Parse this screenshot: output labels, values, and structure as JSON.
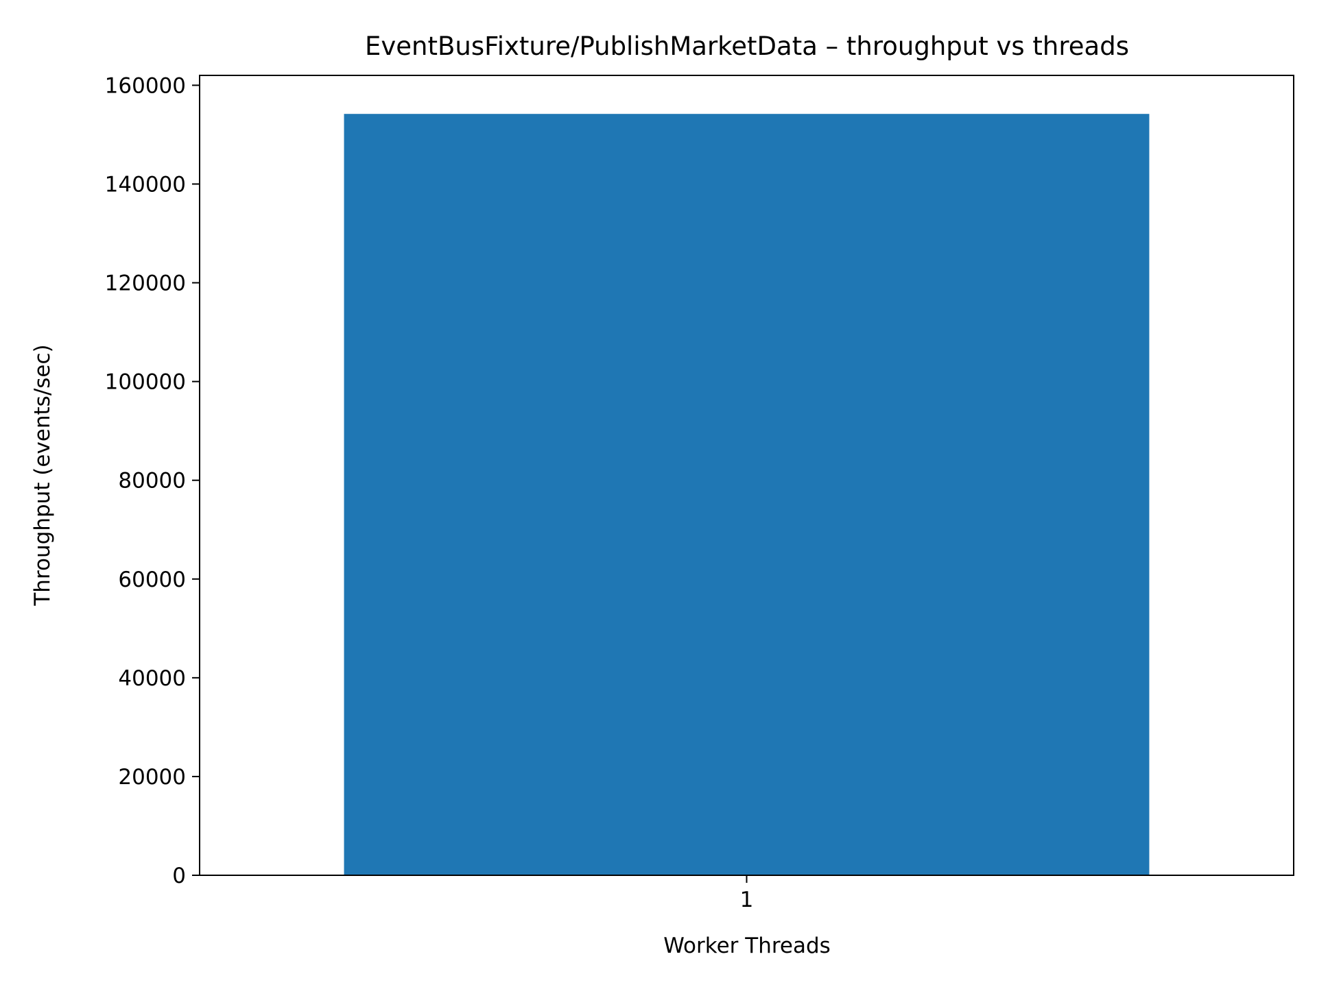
{
  "chart_data": {
    "type": "bar",
    "title": "EventBusFixture/PublishMarketData – throughput vs threads",
    "xlabel": "Worker Threads",
    "ylabel": "Throughput (events/sec)",
    "categories": [
      "1"
    ],
    "values": [
      154200
    ],
    "ylim": [
      0,
      162000
    ],
    "yticks": [
      0,
      20000,
      40000,
      60000,
      80000,
      100000,
      120000,
      140000,
      160000
    ],
    "grid": false,
    "colors": {
      "bar": "#1f77b4",
      "axes": "#000000",
      "background": "#ffffff"
    }
  }
}
